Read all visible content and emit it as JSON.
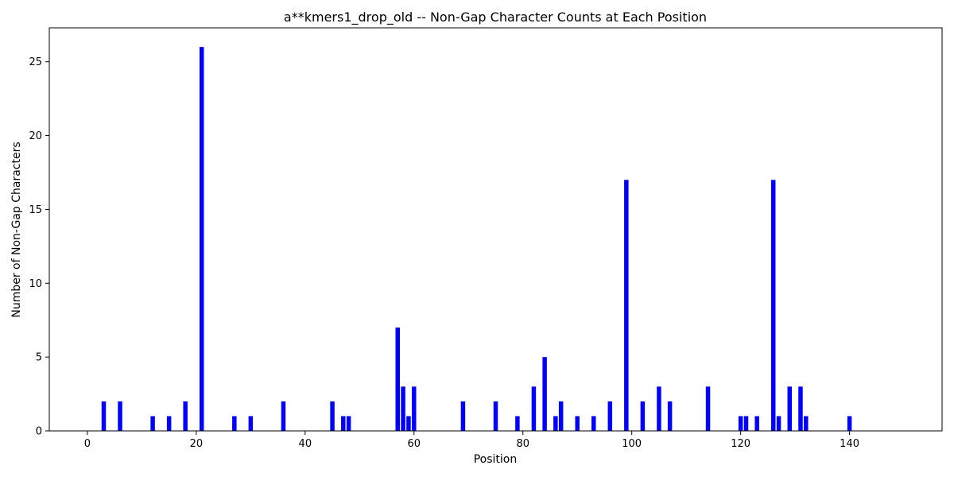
{
  "chart_data": {
    "type": "bar",
    "title": "a**kmers1_drop_old -- Non-Gap Character Counts at Each Position",
    "xlabel": "Position",
    "ylabel": "Number of Non-Gap Characters",
    "xlim": [
      -7,
      157
    ],
    "ylim": [
      0,
      27.3
    ],
    "xticks": [
      0,
      20,
      40,
      60,
      80,
      100,
      120,
      140
    ],
    "yticks": [
      0,
      5,
      10,
      15,
      20,
      25
    ],
    "grid": false,
    "bar_color": "#0000ff",
    "bar_width": 0.8,
    "x": [
      3,
      6,
      12,
      15,
      18,
      21,
      27,
      30,
      36,
      45,
      47,
      48,
      57,
      58,
      59,
      60,
      69,
      75,
      79,
      82,
      84,
      86,
      87,
      90,
      93,
      96,
      99,
      102,
      105,
      107,
      114,
      120,
      121,
      123,
      126,
      127,
      129,
      131,
      132,
      140
    ],
    "values": [
      2,
      2,
      1,
      1,
      2,
      26,
      1,
      1,
      2,
      2,
      1,
      1,
      7,
      3,
      1,
      3,
      2,
      2,
      1,
      3,
      5,
      1,
      2,
      1,
      1,
      2,
      17,
      2,
      3,
      2,
      3,
      1,
      1,
      1,
      17,
      1,
      3,
      3,
      1,
      1
    ]
  }
}
